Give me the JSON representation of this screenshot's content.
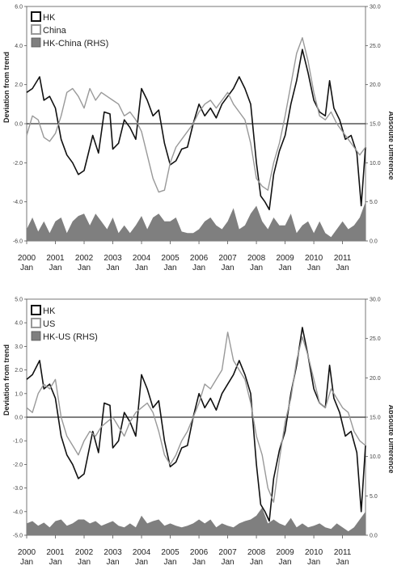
{
  "chart_data": [
    {
      "type": "line",
      "ylabel": "Deviation from trend",
      "y2label": "Absolute Difference",
      "ylim": [
        -6,
        6
      ],
      "y2lim": [
        0,
        30
      ],
      "yticks": [
        "6.0",
        "4.0",
        "2.0",
        "0.0",
        "-2.0",
        "-4.0",
        "-6.0"
      ],
      "y2ticks": [
        "30.0",
        "25.0",
        "20.0",
        "15.0",
        "10.0",
        "5.0",
        "0.0"
      ],
      "xticks": [
        {
          "year": "2000",
          "month": "Jan"
        },
        {
          "year": "2001",
          "month": "Jan"
        },
        {
          "year": "2002",
          "month": "Jan"
        },
        {
          "year": "2003",
          "month": "Jan"
        },
        {
          "year": "2004",
          "month": "Jan"
        },
        {
          "year": "2005",
          "month": "Jan"
        },
        {
          "year": "2006",
          "month": "Jan"
        },
        {
          "year": "2007",
          "month": "Jan"
        },
        {
          "year": "2008",
          "month": "Jan"
        },
        {
          "year": "2009",
          "month": "Jan"
        },
        {
          "year": "2010",
          "month": "Jan"
        },
        {
          "year": "2011",
          "month": "Jan"
        }
      ],
      "legend_position": "top-left",
      "series": [
        {
          "name": "HK",
          "axis": "left",
          "style": "line",
          "color": "#111111",
          "x": [
            2000.0,
            2000.2,
            2000.45,
            2000.6,
            2000.8,
            2001.0,
            2001.2,
            2001.4,
            2001.6,
            2001.8,
            2002.0,
            2002.1,
            2002.3,
            2002.5,
            2002.7,
            2002.9,
            2003.0,
            2003.2,
            2003.4,
            2003.6,
            2003.8,
            2004.0,
            2004.2,
            2004.4,
            2004.6,
            2004.8,
            2005.0,
            2005.2,
            2005.4,
            2005.6,
            2005.8,
            2006.0,
            2006.2,
            2006.4,
            2006.6,
            2006.8,
            2007.0,
            2007.2,
            2007.4,
            2007.6,
            2007.8,
            2008.0,
            2008.15,
            2008.3,
            2008.45,
            2008.6,
            2008.8,
            2009.0,
            2009.2,
            2009.4,
            2009.6,
            2009.8,
            2010.0,
            2010.2,
            2010.4,
            2010.55,
            2010.7,
            2010.9,
            2011.1,
            2011.3,
            2011.5,
            2011.65,
            2011.8
          ],
          "values": [
            1.6,
            1.8,
            2.4,
            1.2,
            1.4,
            0.8,
            -0.8,
            -1.6,
            -2.0,
            -2.6,
            -2.4,
            -1.8,
            -0.6,
            -1.5,
            0.6,
            0.5,
            -1.3,
            -1.0,
            0.2,
            -0.2,
            -0.8,
            1.8,
            1.2,
            0.4,
            0.7,
            -1.0,
            -2.1,
            -1.9,
            -1.3,
            -1.2,
            0.0,
            1.0,
            0.4,
            0.8,
            0.3,
            1.0,
            1.4,
            1.8,
            2.4,
            1.8,
            1.0,
            -2.0,
            -3.7,
            -4.0,
            -4.4,
            -2.6,
            -1.4,
            -0.6,
            1.0,
            2.2,
            3.8,
            2.6,
            1.2,
            0.6,
            0.4,
            2.2,
            0.8,
            0.2,
            -0.8,
            -0.6,
            -1.5,
            -4.2,
            -1.2
          ]
        },
        {
          "name": "China",
          "axis": "left",
          "style": "line",
          "color": "#999999",
          "x": [
            2000.0,
            2000.2,
            2000.4,
            2000.6,
            2000.8,
            2001.0,
            2001.2,
            2001.4,
            2001.6,
            2001.8,
            2002.0,
            2002.2,
            2002.4,
            2002.6,
            2002.8,
            2003.0,
            2003.2,
            2003.4,
            2003.6,
            2003.8,
            2004.0,
            2004.2,
            2004.4,
            2004.6,
            2004.8,
            2005.0,
            2005.2,
            2005.4,
            2005.6,
            2005.8,
            2006.0,
            2006.2,
            2006.4,
            2006.6,
            2006.8,
            2007.0,
            2007.2,
            2007.4,
            2007.6,
            2007.8,
            2008.0,
            2008.2,
            2008.4,
            2008.6,
            2008.8,
            2009.0,
            2009.2,
            2009.4,
            2009.6,
            2009.8,
            2010.0,
            2010.2,
            2010.4,
            2010.6,
            2010.8,
            2011.0,
            2011.2,
            2011.4,
            2011.6,
            2011.8
          ],
          "values": [
            -0.6,
            0.4,
            0.2,
            -0.7,
            -0.9,
            -0.5,
            0.4,
            1.6,
            1.8,
            1.4,
            0.8,
            1.8,
            1.2,
            1.6,
            1.4,
            1.2,
            1.0,
            0.4,
            0.6,
            0.2,
            -0.4,
            -1.6,
            -2.8,
            -3.5,
            -3.4,
            -2.0,
            -1.2,
            -0.8,
            -0.4,
            0.0,
            0.6,
            1.0,
            1.2,
            0.8,
            1.2,
            1.6,
            1.0,
            0.6,
            0.2,
            -1.0,
            -2.8,
            -3.2,
            -3.4,
            -2.0,
            -1.0,
            0.4,
            2.0,
            3.6,
            4.4,
            3.2,
            1.6,
            0.4,
            0.2,
            0.6,
            0.0,
            -0.4,
            -0.8,
            -1.2,
            -1.6,
            -1.2
          ]
        },
        {
          "name": "HK-China (RHS)",
          "axis": "right",
          "style": "area",
          "color": "#7f7f7f",
          "x": [
            2000.0,
            2000.2,
            2000.4,
            2000.6,
            2000.8,
            2001.0,
            2001.2,
            2001.4,
            2001.6,
            2001.8,
            2002.0,
            2002.2,
            2002.4,
            2002.6,
            2002.8,
            2003.0,
            2003.2,
            2003.4,
            2003.6,
            2003.8,
            2004.0,
            2004.2,
            2004.4,
            2004.6,
            2004.8,
            2005.0,
            2005.2,
            2005.4,
            2005.6,
            2005.8,
            2006.0,
            2006.2,
            2006.4,
            2006.6,
            2006.8,
            2007.0,
            2007.2,
            2007.4,
            2007.6,
            2007.8,
            2008.0,
            2008.2,
            2008.4,
            2008.6,
            2008.8,
            2009.0,
            2009.2,
            2009.4,
            2009.6,
            2009.8,
            2010.0,
            2010.2,
            2010.4,
            2010.6,
            2010.8,
            2011.0,
            2011.2,
            2011.4,
            2011.6,
            2011.8
          ],
          "values": [
            1.5,
            3.0,
            1.2,
            2.5,
            1.0,
            2.5,
            3.0,
            1.0,
            2.5,
            3.2,
            3.5,
            2.0,
            3.5,
            2.5,
            1.5,
            3.0,
            1.0,
            2.0,
            1.0,
            2.0,
            3.2,
            1.5,
            3.0,
            3.5,
            2.5,
            2.5,
            3.0,
            1.2,
            1.0,
            1.0,
            1.5,
            2.5,
            3.0,
            2.0,
            1.5,
            2.5,
            4.2,
            1.5,
            2.0,
            3.5,
            4.5,
            2.5,
            1.5,
            3.0,
            2.0,
            2.0,
            3.5,
            1.0,
            2.0,
            2.5,
            1.0,
            2.5,
            1.0,
            0.5,
            1.5,
            2.5,
            1.5,
            2.0,
            3.0,
            5.0
          ]
        }
      ]
    },
    {
      "type": "line",
      "ylabel": "Deviation from trend",
      "y2label": "Absolute Difference",
      "ylim": [
        -5,
        5
      ],
      "y2lim": [
        0,
        30
      ],
      "yticks": [
        "5.0",
        "4.0",
        "3.0",
        "2.0",
        "1.0",
        "0.0",
        "-1.0",
        "-2.0",
        "-3.0",
        "-4.0",
        "-5.0"
      ],
      "y2ticks": [
        "30.0",
        "25.0",
        "20.0",
        "15.0",
        "10.0",
        "5.0",
        "0.0"
      ],
      "xticks": [
        {
          "year": "2000",
          "month": "Jan"
        },
        {
          "year": "2001",
          "month": "Jan"
        },
        {
          "year": "2002",
          "month": "Jan"
        },
        {
          "year": "2003",
          "month": "Jan"
        },
        {
          "year": "2004",
          "month": "Jan"
        },
        {
          "year": "2005",
          "month": "Jan"
        },
        {
          "year": "2006",
          "month": "Jan"
        },
        {
          "year": "2007",
          "month": "Jan"
        },
        {
          "year": "2008",
          "month": "Jan"
        },
        {
          "year": "2009",
          "month": "Jan"
        },
        {
          "year": "2010",
          "month": "Jan"
        },
        {
          "year": "2011",
          "month": "Jan"
        }
      ],
      "legend_position": "top-left",
      "series": [
        {
          "name": "HK",
          "axis": "left",
          "style": "line",
          "color": "#111111",
          "x": [
            2000.0,
            2000.2,
            2000.45,
            2000.6,
            2000.8,
            2001.0,
            2001.2,
            2001.4,
            2001.6,
            2001.8,
            2002.0,
            2002.1,
            2002.3,
            2002.5,
            2002.7,
            2002.9,
            2003.0,
            2003.2,
            2003.4,
            2003.6,
            2003.8,
            2004.0,
            2004.2,
            2004.4,
            2004.6,
            2004.8,
            2005.0,
            2005.2,
            2005.4,
            2005.6,
            2005.8,
            2006.0,
            2006.2,
            2006.4,
            2006.6,
            2006.8,
            2007.0,
            2007.2,
            2007.4,
            2007.6,
            2007.8,
            2008.0,
            2008.15,
            2008.3,
            2008.45,
            2008.6,
            2008.8,
            2009.0,
            2009.2,
            2009.4,
            2009.6,
            2009.8,
            2010.0,
            2010.2,
            2010.4,
            2010.55,
            2010.7,
            2010.9,
            2011.1,
            2011.3,
            2011.5,
            2011.65,
            2011.8
          ],
          "values": [
            1.6,
            1.8,
            2.4,
            1.2,
            1.4,
            0.8,
            -0.8,
            -1.6,
            -2.0,
            -2.6,
            -2.4,
            -1.8,
            -0.6,
            -1.5,
            0.6,
            0.5,
            -1.3,
            -1.0,
            0.2,
            -0.2,
            -0.8,
            1.8,
            1.2,
            0.4,
            0.7,
            -1.0,
            -2.1,
            -1.9,
            -1.3,
            -1.2,
            0.0,
            1.0,
            0.4,
            0.8,
            0.3,
            1.0,
            1.4,
            1.8,
            2.4,
            1.8,
            1.0,
            -2.0,
            -3.7,
            -4.0,
            -4.4,
            -2.6,
            -1.4,
            -0.6,
            1.0,
            2.2,
            3.8,
            2.6,
            1.2,
            0.6,
            0.4,
            2.2,
            0.8,
            0.2,
            -0.8,
            -0.6,
            -1.5,
            -4.0,
            -1.2
          ]
        },
        {
          "name": "US",
          "axis": "left",
          "style": "line",
          "color": "#999999",
          "x": [
            2000.0,
            2000.2,
            2000.4,
            2000.6,
            2000.8,
            2001.0,
            2001.2,
            2001.4,
            2001.6,
            2001.8,
            2002.0,
            2002.2,
            2002.4,
            2002.6,
            2002.8,
            2003.0,
            2003.2,
            2003.4,
            2003.6,
            2003.8,
            2004.0,
            2004.2,
            2004.4,
            2004.6,
            2004.8,
            2005.0,
            2005.2,
            2005.4,
            2005.6,
            2005.8,
            2006.0,
            2006.2,
            2006.4,
            2006.6,
            2006.8,
            2007.0,
            2007.2,
            2007.4,
            2007.6,
            2007.8,
            2008.0,
            2008.2,
            2008.4,
            2008.6,
            2008.8,
            2009.0,
            2009.2,
            2009.4,
            2009.6,
            2009.8,
            2010.0,
            2010.2,
            2010.4,
            2010.6,
            2010.8,
            2011.0,
            2011.2,
            2011.4,
            2011.6,
            2011.8
          ],
          "values": [
            0.4,
            0.2,
            1.0,
            1.4,
            1.2,
            1.6,
            0.0,
            -0.8,
            -1.2,
            -1.6,
            -1.0,
            -0.6,
            -0.8,
            -0.4,
            -0.2,
            0.0,
            -0.4,
            -0.8,
            -0.2,
            0.2,
            0.4,
            0.6,
            0.2,
            -0.6,
            -1.6,
            -2.0,
            -1.6,
            -1.0,
            -0.6,
            0.0,
            0.6,
            1.4,
            1.2,
            1.6,
            2.0,
            3.6,
            2.4,
            2.0,
            1.6,
            0.6,
            -0.8,
            -1.6,
            -3.0,
            -3.6,
            -1.8,
            -0.2,
            0.8,
            2.4,
            3.4,
            2.6,
            1.6,
            0.6,
            0.4,
            1.2,
            0.8,
            0.4,
            0.2,
            -0.6,
            -1.0,
            -1.2
          ]
        },
        {
          "name": "HK-US (RHS)",
          "axis": "right",
          "style": "area",
          "color": "#7f7f7f",
          "x": [
            2000.0,
            2000.2,
            2000.4,
            2000.6,
            2000.8,
            2001.0,
            2001.2,
            2001.4,
            2001.6,
            2001.8,
            2002.0,
            2002.2,
            2002.4,
            2002.6,
            2002.8,
            2003.0,
            2003.2,
            2003.4,
            2003.6,
            2003.8,
            2004.0,
            2004.2,
            2004.4,
            2004.6,
            2004.8,
            2005.0,
            2005.2,
            2005.4,
            2005.6,
            2005.8,
            2006.0,
            2006.2,
            2006.4,
            2006.6,
            2006.8,
            2007.0,
            2007.2,
            2007.4,
            2007.6,
            2007.8,
            2008.0,
            2008.2,
            2008.4,
            2008.6,
            2008.8,
            2009.0,
            2009.2,
            2009.4,
            2009.6,
            2009.8,
            2010.0,
            2010.2,
            2010.4,
            2010.6,
            2010.8,
            2011.0,
            2011.2,
            2011.4,
            2011.6,
            2011.8
          ],
          "values": [
            1.5,
            1.8,
            1.2,
            1.6,
            1.0,
            1.8,
            2.0,
            1.2,
            1.5,
            2.0,
            2.0,
            1.5,
            1.8,
            1.2,
            1.5,
            1.8,
            1.2,
            1.0,
            1.5,
            1.0,
            2.5,
            1.5,
            1.8,
            2.0,
            1.2,
            1.5,
            1.2,
            1.0,
            1.2,
            1.5,
            2.0,
            1.5,
            2.0,
            1.0,
            1.5,
            1.2,
            1.0,
            1.5,
            1.8,
            2.0,
            2.5,
            3.5,
            1.5,
            2.0,
            1.5,
            1.2,
            2.2,
            1.0,
            1.5,
            1.0,
            1.2,
            1.5,
            1.0,
            0.8,
            1.5,
            1.0,
            0.5,
            1.0,
            2.0,
            3.0
          ]
        }
      ]
    }
  ]
}
